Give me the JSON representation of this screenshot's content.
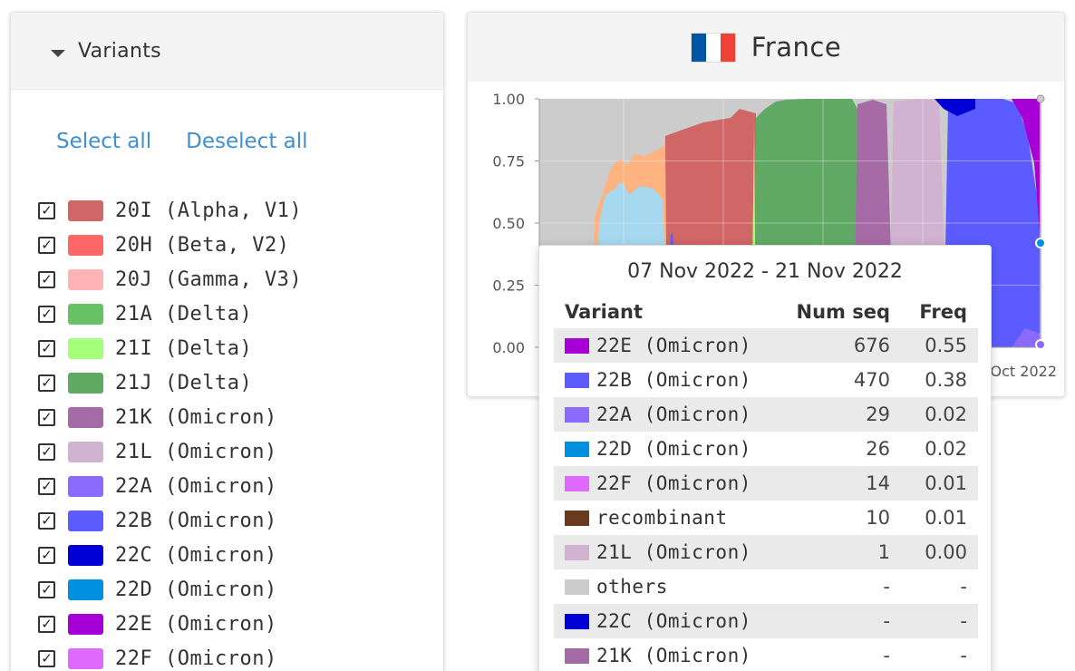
{
  "left_panel": {
    "title": "Variants",
    "select_all": "Select all",
    "deselect_all": "Deselect all",
    "variants": [
      {
        "label": "20I (Alpha, V1)",
        "color": "#d16666",
        "checked": true
      },
      {
        "label": "20H (Beta, V2)",
        "color": "#ff6666",
        "checked": true
      },
      {
        "label": "20J (Gamma, V3)",
        "color": "#ffb3b3",
        "checked": true
      },
      {
        "label": "21A (Delta)",
        "color": "#66c265",
        "checked": true
      },
      {
        "label": "21I (Delta)",
        "color": "#a6ff78",
        "checked": true
      },
      {
        "label": "21J (Delta)",
        "color": "#60aa66",
        "checked": true
      },
      {
        "label": "21K (Omicron)",
        "color": "#a66ba6",
        "checked": true
      },
      {
        "label": "21L (Omicron)",
        "color": "#d1b3d1",
        "checked": true
      },
      {
        "label": "22A (Omicron)",
        "color": "#8a6aff",
        "checked": true
      },
      {
        "label": "22B (Omicron)",
        "color": "#5b5bff",
        "checked": true
      },
      {
        "label": "22C (Omicron)",
        "color": "#0000d6",
        "checked": true
      },
      {
        "label": "22D (Omicron)",
        "color": "#0090e0",
        "checked": true
      },
      {
        "label": "22E (Omicron)",
        "color": "#a600d6",
        "checked": true
      },
      {
        "label": "22F (Omicron)",
        "color": "#e06aff",
        "checked": true
      }
    ]
  },
  "right_panel": {
    "country": "France",
    "flag_colors": [
      "#0055a4",
      "#ffffff",
      "#ef4135"
    ]
  },
  "chart_data": {
    "type": "area",
    "stacked": true,
    "y_ticks": [
      "1.00",
      "0.75",
      "0.50",
      "0.25",
      "0.00"
    ],
    "ylim": [
      0,
      1
    ],
    "x_tick_labels_visible": [
      "Oct 2022"
    ],
    "grid": true
  },
  "tooltip": {
    "title": "07 Nov 2022 - 21 Nov 2022",
    "headers": {
      "variant": "Variant",
      "num_seq": "Num seq",
      "freq": "Freq"
    },
    "rows": [
      {
        "variant": "22E (Omicron)",
        "color": "#a600d6",
        "num_seq": "676",
        "freq": "0.55"
      },
      {
        "variant": "22B (Omicron)",
        "color": "#5b5bff",
        "num_seq": "470",
        "freq": "0.38"
      },
      {
        "variant": "22A (Omicron)",
        "color": "#8a6aff",
        "num_seq": "29",
        "freq": "0.02"
      },
      {
        "variant": "22D (Omicron)",
        "color": "#0090e0",
        "num_seq": "26",
        "freq": "0.02"
      },
      {
        "variant": "22F (Omicron)",
        "color": "#e06aff",
        "num_seq": "14",
        "freq": "0.01"
      },
      {
        "variant": "recombinant",
        "color": "#6b3a1e",
        "num_seq": "10",
        "freq": "0.01"
      },
      {
        "variant": "21L (Omicron)",
        "color": "#d1b3d1",
        "num_seq": "1",
        "freq": "0.00"
      },
      {
        "variant": "others",
        "color": "#cccccc",
        "num_seq": "-",
        "freq": "-"
      },
      {
        "variant": "22C (Omicron)",
        "color": "#0000d6",
        "num_seq": "-",
        "freq": "-"
      },
      {
        "variant": "21K (Omicron)",
        "color": "#a66ba6",
        "num_seq": "-",
        "freq": "-"
      }
    ]
  }
}
